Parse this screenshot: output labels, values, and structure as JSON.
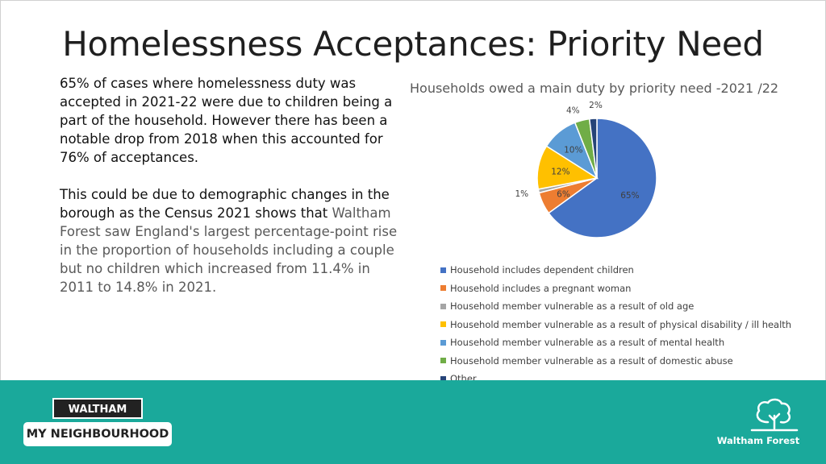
{
  "title": "Homelessness Acceptances: Priority Need",
  "paragraph1": "65% of cases where homelessness duty was accepted in 2021-22 were due to children being a part of the household. However there has been a notable drop from 2018 when this accounted for 76% of acceptances.",
  "paragraph2_start": "This could be due to demographic changes in the borough as the Census 2021 shows that ",
  "paragraph2_highlight": "Waltham Forest saw England's largest percentage-point rise in the proportion of households including a couple but no children which increased from 11.4% in 2011 to 14.8% in 2021.",
  "chart_data": {
    "type": "pie",
    "title": "Households owed a main duty by priority need -2021 /22",
    "legend_position": "bottom",
    "slices": [
      {
        "name": "Household includes dependent children",
        "value": 65,
        "label": "65%",
        "color": "#4472c4"
      },
      {
        "name": "Household includes a pregnant woman",
        "value": 6,
        "label": "6%",
        "color": "#ed7d31"
      },
      {
        "name": "Household member vulnerable as a result of old age",
        "value": 1,
        "label": "1%",
        "color": "#a5a5a5"
      },
      {
        "name": "Household member vulnerable as a result of physical disability / ill health",
        "value": 12,
        "label": "12%",
        "color": "#ffc000"
      },
      {
        "name": "Household member vulnerable as a result of mental health",
        "value": 10,
        "label": "10%",
        "color": "#5b9bd5"
      },
      {
        "name": "Household member vulnerable as a result of domestic abuse",
        "value": 4,
        "label": "4%",
        "color": "#70ad47"
      },
      {
        "name": "Other",
        "value": 2,
        "label": "2%",
        "color": "#264478"
      }
    ]
  },
  "footer": {
    "logo_top": "WALTHAM FOREST",
    "logo_bottom": "MY NEIGHBOURHOOD",
    "brand": "Waltham Forest"
  }
}
